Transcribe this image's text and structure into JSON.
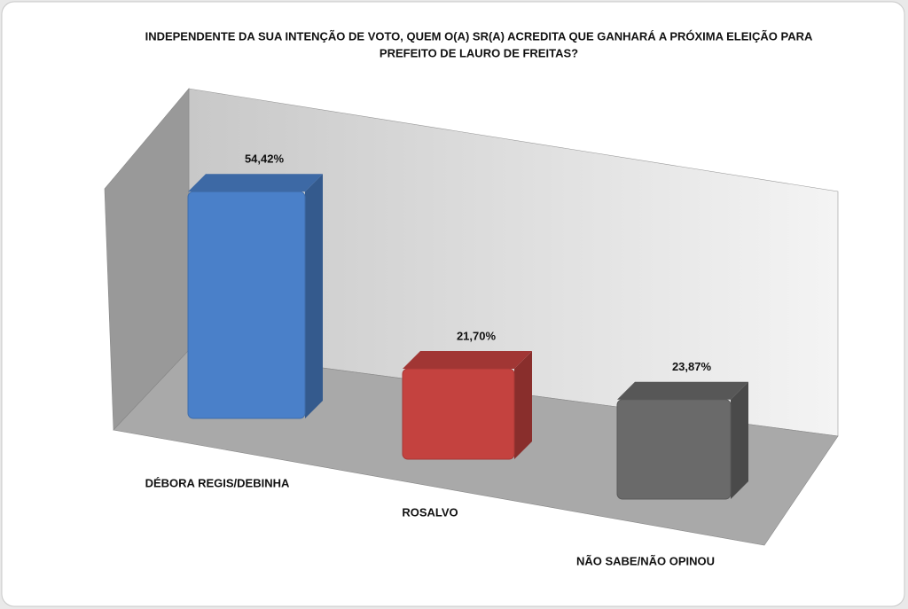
{
  "chart_data": {
    "type": "bar3d",
    "title": [
      "INDEPENDENTE DA SUA INTENÇÃO DE VOTO, QUEM O(A) SR(A) ACREDITA QUE GANHARÁ A PRÓXIMA ELEIÇÃO PARA",
      "PREFEITO DE LAURO DE FREITAS?"
    ],
    "categories": [
      "DÉBORA REGIS/DEBINHA",
      "ROSALVO",
      "NÃO SABE/NÃO OPINOU"
    ],
    "values": [
      54.42,
      21.7,
      23.87
    ],
    "value_labels": [
      "54,42%",
      "21,70%",
      "23,87%"
    ],
    "colors": [
      "#4a80c9",
      "#c4423f",
      "#6a6a6a"
    ]
  }
}
